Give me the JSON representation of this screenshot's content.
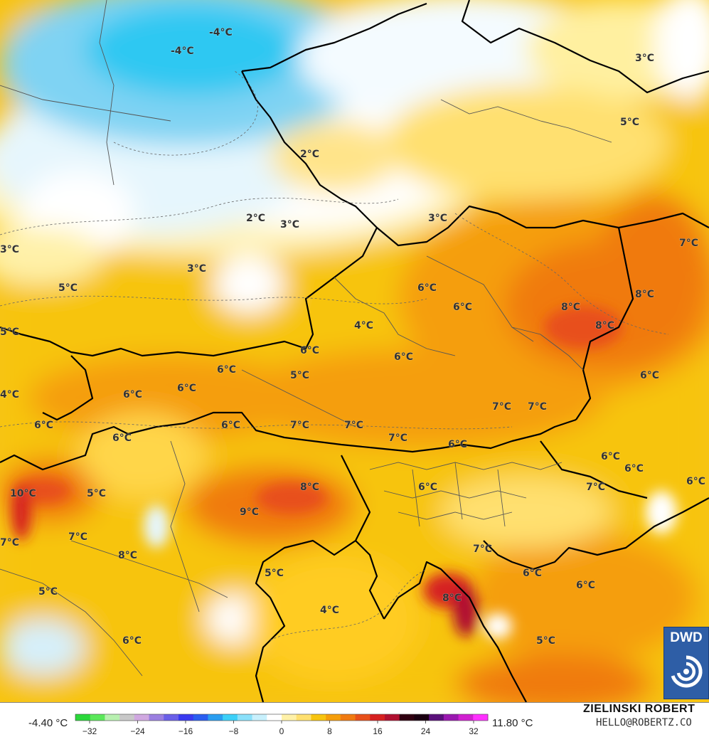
{
  "map": {
    "labels": [
      "-4°C",
      "-4°C",
      "3°C",
      "5°C",
      "2°C",
      "2°C",
      "3°C",
      "3°C",
      "3°C",
      "7°C",
      "3°C",
      "5°C",
      "6°C",
      "6°C",
      "8°C",
      "8°C",
      "8°C",
      "5°C",
      "4°C",
      "6°C",
      "6°C",
      "6°C",
      "6°C",
      "5°C",
      "6°C",
      "4°C",
      "6°C",
      "7°C",
      "7°C",
      "7°C",
      "7°C",
      "6°C",
      "7°C",
      "6°C",
      "6°C",
      "6°C",
      "6°C",
      "10°C",
      "5°C",
      "8°C",
      "9°C",
      "6°C",
      "7°C",
      "7°C",
      "8°C",
      "7°C",
      "6°C",
      "6°C",
      "5°C",
      "8°C",
      "4°C",
      "6°C",
      "7°C",
      "6°C",
      "5°C",
      "5°C",
      "6°C"
    ]
  },
  "legend": {
    "min_label": "-4.40 °C",
    "max_label": "11.80 °C",
    "ticks": [
      "−32",
      "−24",
      "−16",
      "−8",
      "0",
      "8",
      "16",
      "24",
      "32"
    ],
    "colors": [
      "#2bd83a",
      "#5be85a",
      "#b8f0b0",
      "#c8c8c8",
      "#d0a8e0",
      "#9b7fe0",
      "#6a5fe8",
      "#3a3af0",
      "#2a5ef0",
      "#2a9ef0",
      "#3cd0f8",
      "#8ae0fa",
      "#c8f0fc",
      "#ffffff",
      "#fff1a8",
      "#ffe070",
      "#f7c40f",
      "#f59e0b",
      "#f07a10",
      "#e8501a",
      "#d62020",
      "#b01030",
      "#300010",
      "#1a0010",
      "#5a107a",
      "#9a18b0",
      "#d020d0",
      "#ff30ff"
    ]
  },
  "logo": {
    "text": "DWD"
  },
  "credits": {
    "author": "ZIELINSKI ROBERT",
    "email": "HELLO@ROBERTZ.CO"
  }
}
